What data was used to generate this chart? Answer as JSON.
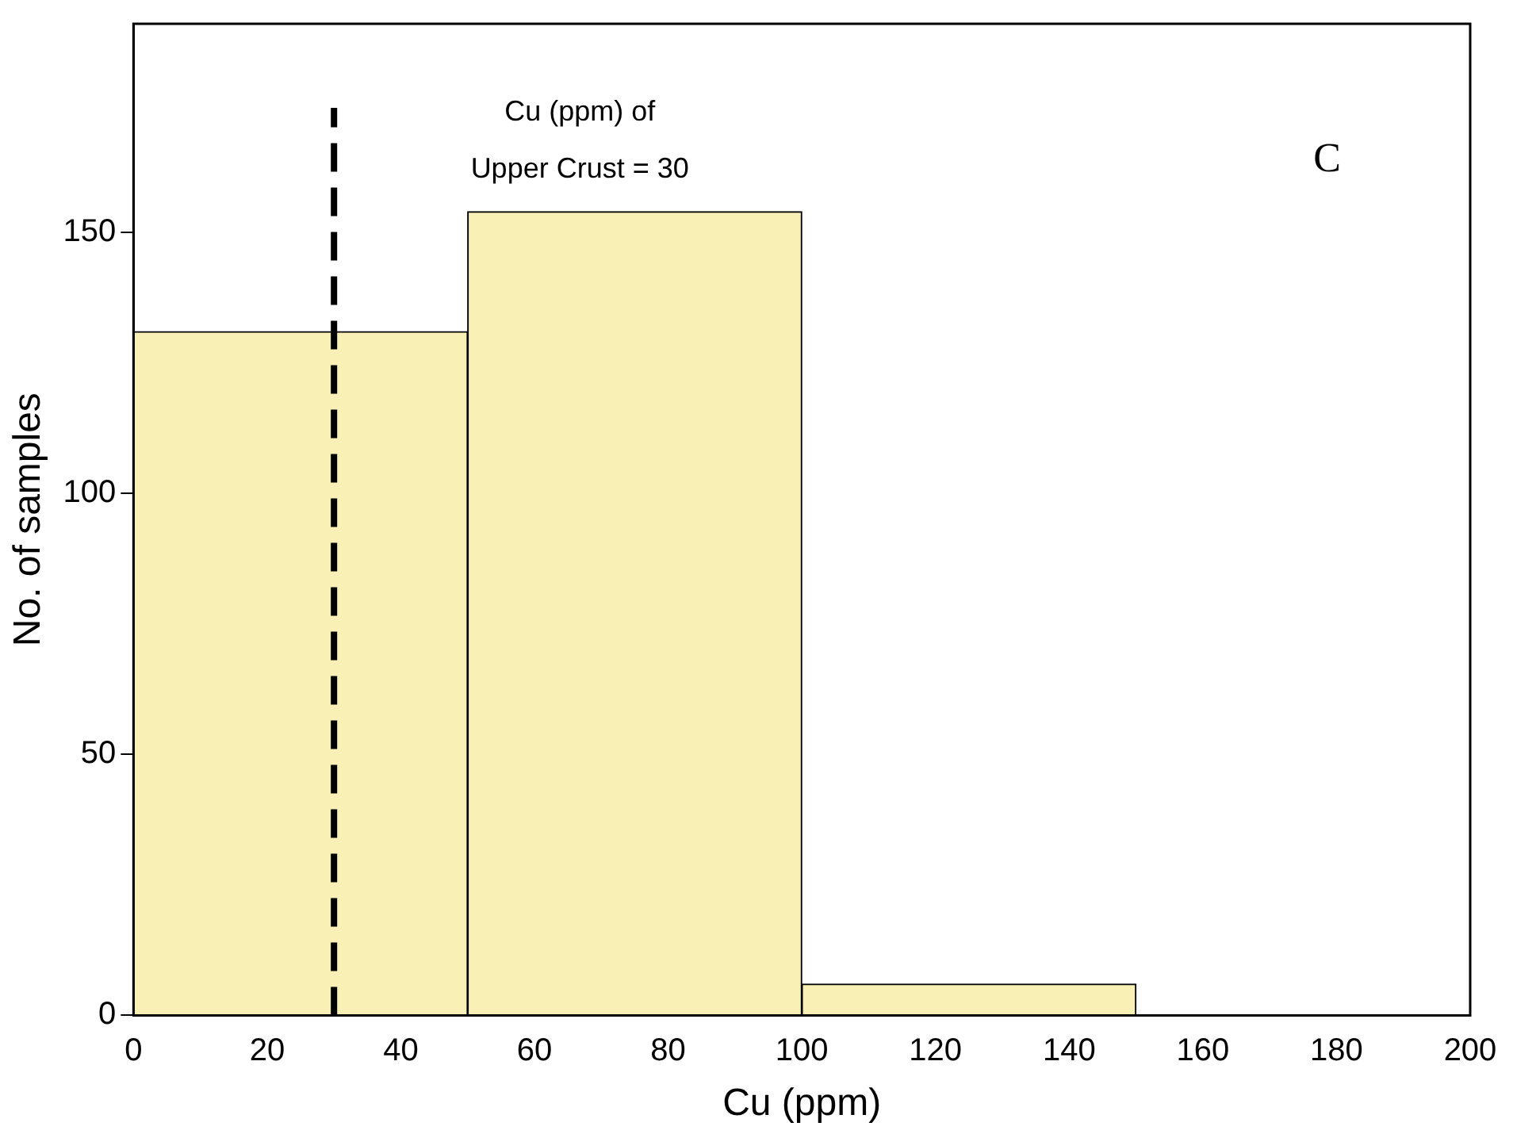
{
  "chart_data": {
    "type": "histogram",
    "xlabel": "Cu (ppm)",
    "ylabel": "No. of samples",
    "bins": [
      0,
      50,
      100,
      150,
      200
    ],
    "values": [
      131,
      154,
      6,
      0
    ],
    "color": "#f8f0b4",
    "xlim": [
      0,
      200
    ],
    "xticks": [
      0,
      20,
      40,
      60,
      80,
      100,
      120,
      140,
      160,
      180,
      200
    ],
    "ylim": [
      0,
      190
    ],
    "yticks": [
      0,
      50,
      100,
      150
    ],
    "ref_lines": [
      {
        "axis": "x",
        "value": 30,
        "label": "Cu (ppm) of\nUpper Crust = 30",
        "color": "#000000",
        "line_style": "dashed"
      }
    ],
    "annotations": [
      "C"
    ]
  }
}
